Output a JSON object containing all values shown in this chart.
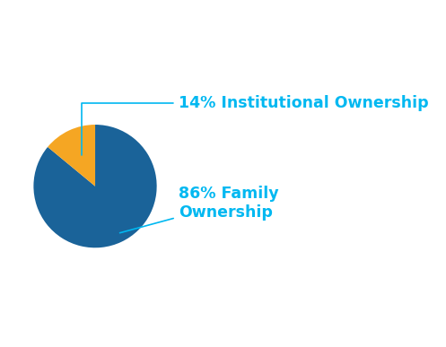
{
  "slices": [
    86,
    14
  ],
  "colors": [
    "#1a6399",
    "#f5a623"
  ],
  "label_color": "#00b8f1",
  "start_angle": 90,
  "background_color": "#ffffff",
  "figsize": [
    4.97,
    3.87
  ],
  "dpi": 100,
  "label_14": "14% Institutional Ownership",
  "label_86": "86% Family\nOwnership",
  "label_fontsize": 12.5,
  "label_fontweight": "bold"
}
